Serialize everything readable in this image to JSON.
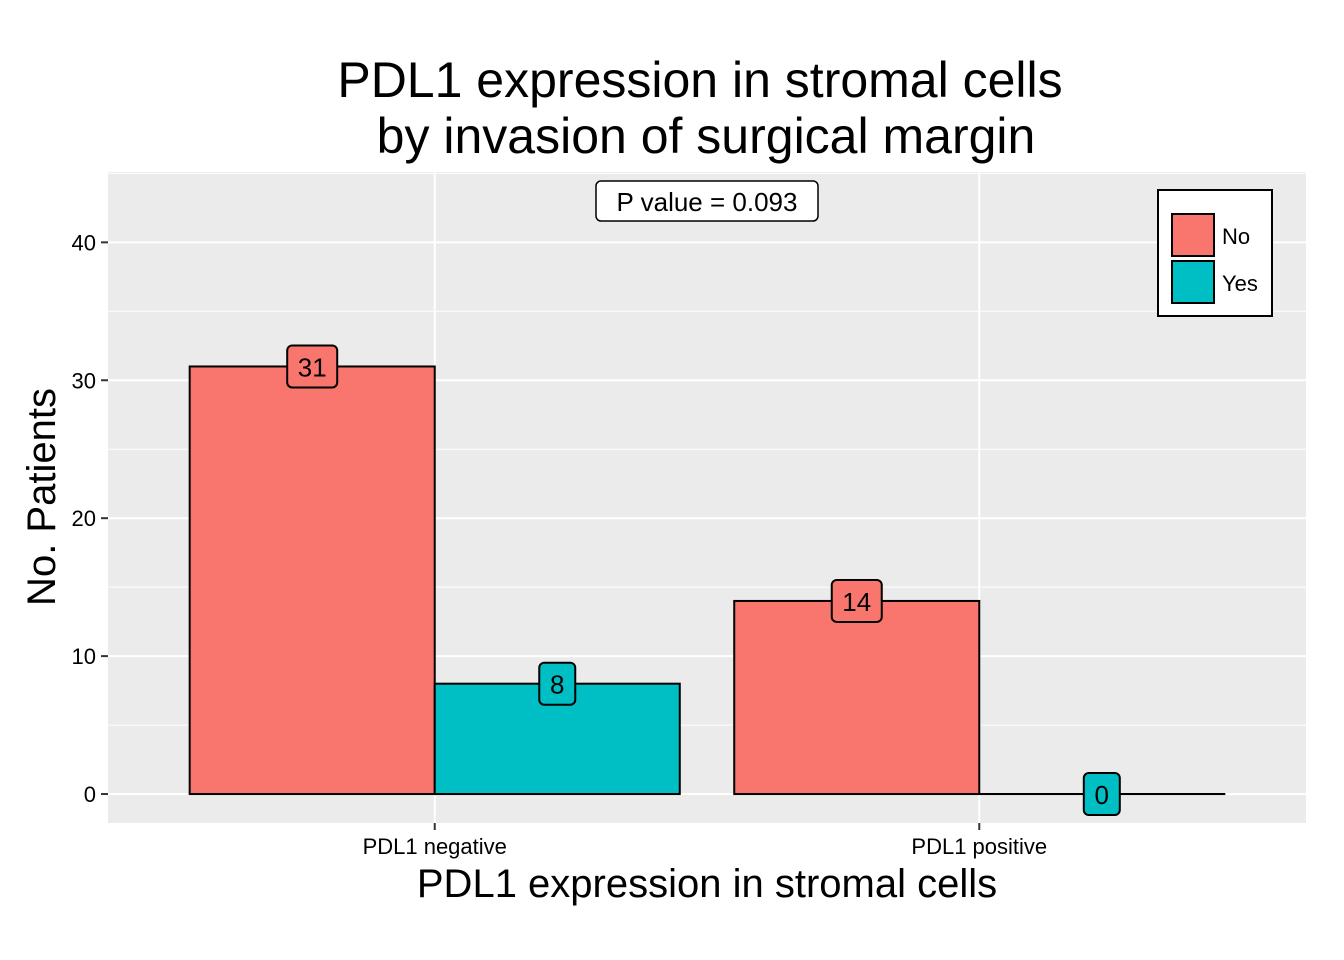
{
  "chart_data": {
    "type": "bar",
    "title": [
      "PDL1 expression in stromal cells",
      "by invasion of surgical margin"
    ],
    "xlabel": "PDL1 expression in stromal cells",
    "ylabel": "No. Patients",
    "categories": [
      "PDL1 negative",
      "PDL1 positive"
    ],
    "series": [
      {
        "name": "No",
        "values": [
          31,
          14
        ],
        "color": "#F8766D"
      },
      {
        "name": "Yes",
        "values": [
          8,
          0
        ],
        "color": "#00BFC4"
      }
    ],
    "ylim": [
      -2.1,
      45.1
    ],
    "yticks": [
      0,
      10,
      20,
      30,
      40
    ],
    "annotation": "P value = 0.093",
    "legend_position": "top-right",
    "grid": true,
    "panel_background": "#EBEBEB"
  }
}
